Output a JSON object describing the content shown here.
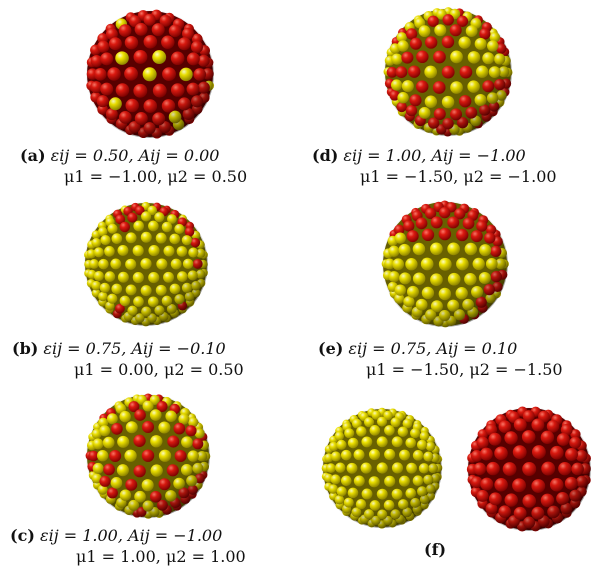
{
  "figure": {
    "panels": [
      {
        "id": "a",
        "label": "(a)",
        "line1": "εij = 0.50, Aij = 0.00",
        "line2": "μ1 = −1.00, μ2 = 0.50",
        "base_color": "#d40000",
        "spot_color": "#f5e800",
        "pattern": "red-with-few-yellow"
      },
      {
        "id": "b",
        "label": "(b)",
        "line1": "εij = 0.75, Aij = −0.10",
        "line2": "μ1 = 0.00, μ2 = 0.50",
        "base_color": "#f5e800",
        "spot_color": "#d40000",
        "pattern": "yellow-with-rim-red"
      },
      {
        "id": "c",
        "label": "(c)",
        "line1": "εij = 1.00, Aij = −1.00",
        "line2": "μ1 = 1.00, μ2 = 1.00",
        "base_color": "#f5e800",
        "spot_color": "#d40000",
        "pattern": "checker"
      },
      {
        "id": "d",
        "label": "(d)",
        "line1": "εij = 1.00, Aij = −1.00",
        "line2": "μ1 = −1.50, μ2 = −1.00",
        "base_color": "#f5e800",
        "spot_color": "#d40000",
        "pattern": "mixed"
      },
      {
        "id": "e",
        "label": "(e)",
        "line1": "εij = 0.75, Aij = 0.10",
        "line2": "μ1 = −1.50, μ2 = −1.50",
        "base_color": "#f5e800",
        "spot_color": "#d40000",
        "pattern": "janus-cap"
      },
      {
        "id": "f",
        "label": "(f)",
        "pattern": "pure-pair"
      }
    ]
  }
}
